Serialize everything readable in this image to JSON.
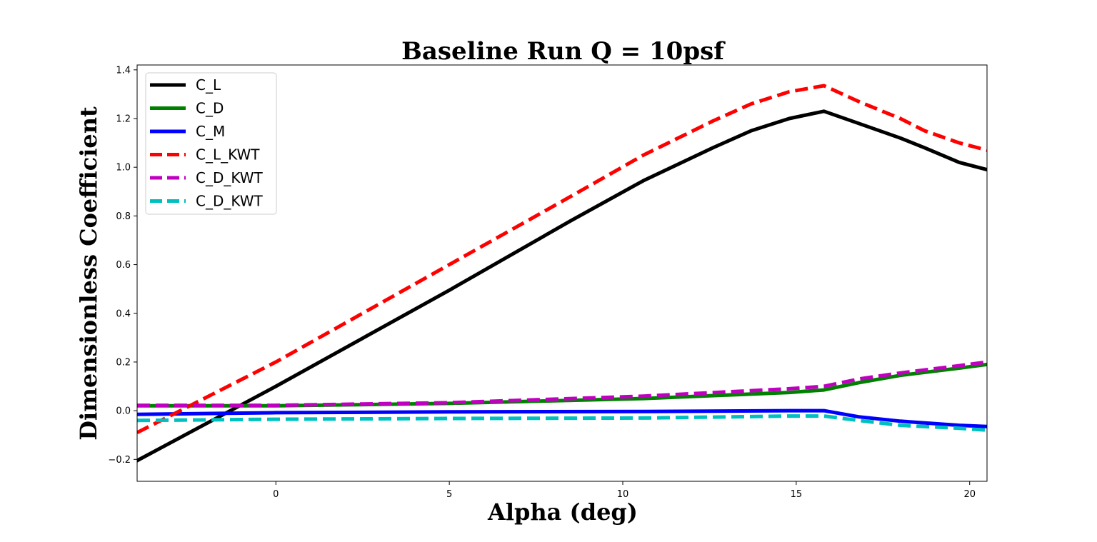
{
  "chart_data": {
    "type": "line",
    "title": "Baseline Run Q = 10psf",
    "xlabel": "Alpha (deg)",
    "ylabel": "Dimensionless Coefficient",
    "xlim": [
      -4,
      20.5
    ],
    "ylim": [
      -0.29,
      1.42
    ],
    "xticks": [
      0,
      5,
      10,
      15,
      20
    ],
    "yticks": [
      -0.2,
      0.0,
      0.2,
      0.4,
      0.6,
      0.8,
      1.0,
      1.2,
      1.4
    ],
    "ytick_labels": [
      "−0.2",
      "0.0",
      "0.2",
      "0.4",
      "0.6",
      "0.8",
      "1.0",
      "1.2",
      "1.4"
    ],
    "grid": false,
    "legend_position": "upper-left",
    "series": [
      {
        "name": "C_L",
        "color": "#000000",
        "style": "solid",
        "x": [
          -4,
          0,
          5,
          8.5,
          10.6,
          12.6,
          13.7,
          14.8,
          15.8,
          16.8,
          18.0,
          18.7,
          19.7,
          20.5
        ],
        "y": [
          -0.205,
          0.1,
          0.495,
          0.78,
          0.945,
          1.08,
          1.15,
          1.2,
          1.23,
          1.18,
          1.12,
          1.08,
          1.02,
          0.99
        ]
      },
      {
        "name": "C_D",
        "color": "#008000",
        "style": "solid",
        "x": [
          -4,
          0,
          5,
          10.6,
          14.8,
          15.8,
          16.8,
          18.0,
          19.7,
          20.5
        ],
        "y": [
          0.02,
          0.02,
          0.03,
          0.05,
          0.075,
          0.085,
          0.115,
          0.145,
          0.175,
          0.19
        ]
      },
      {
        "name": "C_M",
        "color": "#0000ff",
        "style": "solid",
        "x": [
          -4,
          0,
          5,
          10.6,
          14.8,
          15.8,
          16.8,
          18.0,
          19.7,
          20.5
        ],
        "y": [
          -0.015,
          -0.008,
          -0.005,
          -0.003,
          0.0,
          0.0,
          -0.025,
          -0.043,
          -0.06,
          -0.065
        ]
      },
      {
        "name": "C_L_KWT",
        "color": "#ff0000",
        "style": "dashed",
        "x": [
          -4,
          0,
          5,
          8.5,
          10.6,
          12.6,
          13.7,
          14.8,
          15.8,
          16.8,
          18.0,
          18.7,
          19.7,
          20.5
        ],
        "y": [
          -0.09,
          0.2,
          0.6,
          0.88,
          1.05,
          1.19,
          1.26,
          1.31,
          1.335,
          1.27,
          1.2,
          1.15,
          1.1,
          1.07
        ]
      },
      {
        "name": "C_D_KWT",
        "color": "#bf00bf",
        "style": "dashed",
        "x": [
          -4,
          0,
          5,
          10.6,
          14.8,
          15.8,
          16.8,
          18.0,
          19.7,
          20.5
        ],
        "y": [
          0.022,
          0.022,
          0.033,
          0.06,
          0.09,
          0.1,
          0.13,
          0.155,
          0.185,
          0.2
        ]
      },
      {
        "name": "C_D_KWT",
        "color": "#00bfbf",
        "style": "dashed",
        "x": [
          -4,
          0,
          5,
          10.6,
          14.8,
          15.8,
          16.8,
          18.0,
          19.7,
          20.5
        ],
        "y": [
          -0.04,
          -0.035,
          -0.032,
          -0.03,
          -0.022,
          -0.022,
          -0.04,
          -0.06,
          -0.072,
          -0.08
        ]
      }
    ]
  }
}
